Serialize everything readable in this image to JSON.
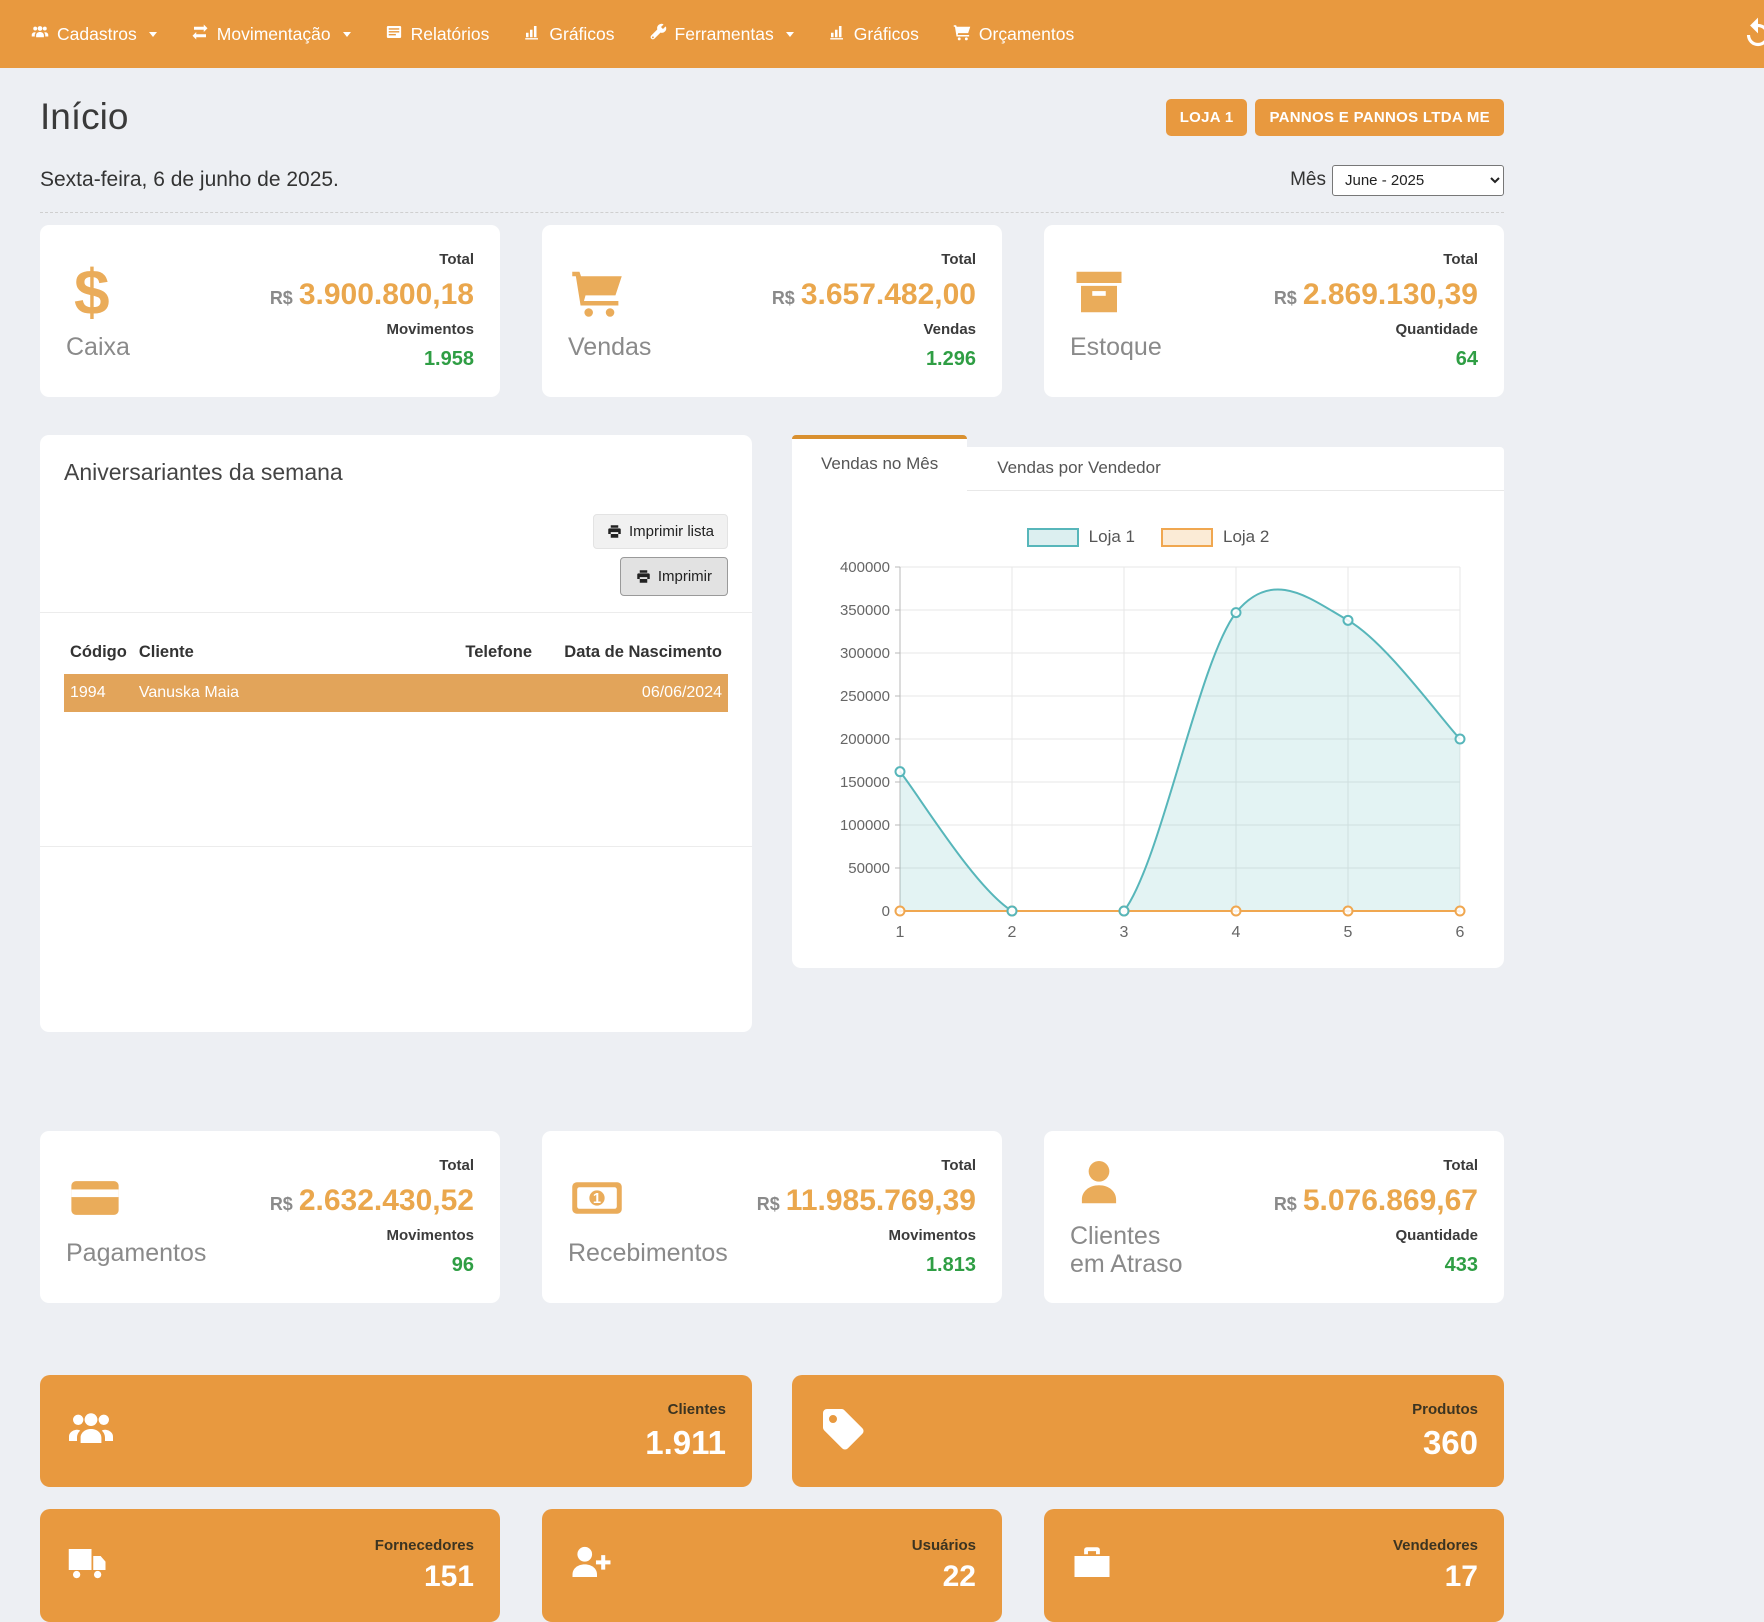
{
  "colors": {
    "orange": "#E8993F",
    "value_orange": "#EAA74D",
    "green": "#2F9E44",
    "teal": "#57B6BA",
    "chart_orange": "#F0A750",
    "page_bg": "#EDEFF3"
  },
  "nav": {
    "items": [
      {
        "label": "Cadastros",
        "icon": "users-icon",
        "dropdown": true
      },
      {
        "label": "Movimentação",
        "icon": "exchange-icon",
        "dropdown": true
      },
      {
        "label": "Relatórios",
        "icon": "newspaper-icon",
        "dropdown": false
      },
      {
        "label": "Gráficos",
        "icon": "bar-chart-icon",
        "dropdown": false
      },
      {
        "label": "Ferramentas",
        "icon": "wrench-icon",
        "dropdown": true
      },
      {
        "label": "Gráficos",
        "icon": "bar-chart-icon",
        "dropdown": false
      },
      {
        "label": "Orçamentos",
        "icon": "cart-icon",
        "dropdown": false
      }
    ]
  },
  "header": {
    "title": "Início",
    "store_badge": "LOJA 1",
    "company_badge": "PANNOS E PANNOS LTDA ME"
  },
  "date_bar": {
    "date": "Sexta-feira, 6 de junho de 2025.",
    "month_label": "Mês",
    "month_value": "June - 2025"
  },
  "stat_cards": [
    {
      "label": "Caixa",
      "total_label": "Total",
      "currency": "R$",
      "total": "3.900.800,18",
      "count_label": "Movimentos",
      "count": "1.958"
    },
    {
      "label": "Vendas",
      "total_label": "Total",
      "currency": "R$",
      "total": "3.657.482,00",
      "count_label": "Vendas",
      "count": "1.296"
    },
    {
      "label": "Estoque",
      "total_label": "Total",
      "currency": "R$",
      "total": "2.869.130,39",
      "count_label": "Quantidade",
      "count": "64"
    },
    {
      "label": "Pagamentos",
      "total_label": "Total",
      "currency": "R$",
      "total": "2.632.430,52",
      "count_label": "Movimentos",
      "count": "96"
    },
    {
      "label": "Recebimentos",
      "total_label": "Total",
      "currency": "R$",
      "total": "11.985.769,39",
      "count_label": "Movimentos",
      "count": "1.813"
    },
    {
      "label": "Clientes em Atraso",
      "total_label": "Total",
      "currency": "R$",
      "total": "5.076.869,67",
      "count_label": "Quantidade",
      "count": "433"
    }
  ],
  "birthdays": {
    "title": "Aniversariantes da semana",
    "print_list_button": "Imprimir lista",
    "print_button": "Imprimir",
    "table": {
      "headers": [
        "Código",
        "Cliente",
        "Telefone",
        "Data de Nascimento"
      ],
      "rows": [
        {
          "codigo": "1994",
          "cliente": "Vanuska Maia",
          "telefone": "",
          "nascimento": "06/06/2024"
        }
      ]
    }
  },
  "sales_panel": {
    "tabs": [
      "Vendas no Mês",
      "Vendas por Vendedor"
    ],
    "active_tab": "Vendas no Mês"
  },
  "chart_data": {
    "type": "line",
    "x": [
      1,
      2,
      3,
      4,
      5,
      6
    ],
    "series": [
      {
        "name": "Loja 1",
        "values": [
          162000,
          0,
          0,
          347000,
          338000,
          200000
        ],
        "color": "#57B6BA",
        "fill": "rgba(87,182,186,0.17)",
        "legend_bg": "#DCEFF0"
      },
      {
        "name": "Loja 2",
        "values": [
          0,
          0,
          0,
          0,
          0,
          0
        ],
        "color": "#F0A750",
        "fill": "rgba(240,167,80,0.15)",
        "legend_bg": "#FBEBD6"
      }
    ],
    "ylim": [
      0,
      400000
    ],
    "ytick_step": 50000,
    "grid": true,
    "legend_position": "top",
    "smooth": true
  },
  "summary_cards": [
    {
      "label": "Clientes",
      "value": "1.911",
      "icon": "users-icon"
    },
    {
      "label": "Produtos",
      "value": "360",
      "icon": "tag-icon"
    },
    {
      "label": "Fornecedores",
      "value": "151",
      "icon": "truck-icon"
    },
    {
      "label": "Usuários",
      "value": "22",
      "icon": "user-plus-icon"
    },
    {
      "label": "Vendedores",
      "value": "17",
      "icon": "briefcase-icon"
    }
  ]
}
